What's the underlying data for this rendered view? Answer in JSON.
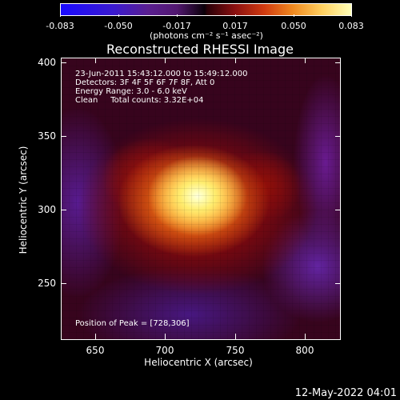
{
  "colorbar": {
    "labels": [
      "-0.083",
      "-0.050",
      "-0.017",
      "0.017",
      "0.050",
      "0.083"
    ],
    "unit_text": "(photons cm⁻² s⁻¹ asec⁻²)"
  },
  "title": "Reconstructed RHESSI Image",
  "info": {
    "line1": "23-Jun-2011 15:43:12.000 to 15:49:12.000",
    "line2": "Detectors: 3F 4F 5F 6F 7F 8F, Att 0",
    "line3": "Energy Range: 3.0 - 6.0 keV",
    "line4": "Clean     Total counts: 3.32E+04"
  },
  "peak": "Position of Peak = [728,306]",
  "axes": {
    "x_title": "Heliocentric X (arcsec)",
    "y_title": "Heliocentric Y (arcsec)",
    "x_ticks": [
      "650",
      "700",
      "750",
      "800"
    ],
    "y_ticks": [
      "400",
      "350",
      "300",
      "250"
    ]
  },
  "footer_date": "12-May-2022 04:01"
}
